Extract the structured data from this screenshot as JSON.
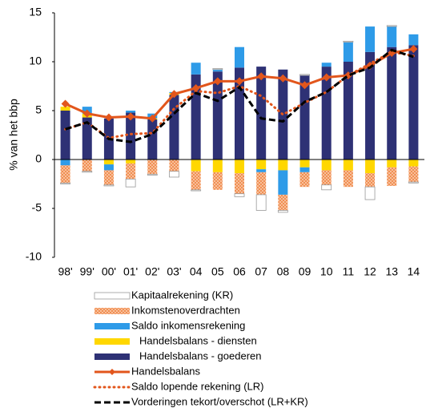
{
  "chart_data": {
    "type": "bar",
    "y_label": "% van het bbp",
    "categories": [
      "98'",
      "99'",
      "00'",
      "01'",
      "02'",
      "03'",
      "04",
      "05",
      "06",
      "07",
      "08",
      "09",
      "10",
      "11",
      "12",
      "13",
      "14"
    ],
    "ylim": [
      -10,
      15
    ],
    "yticks": [
      15,
      10,
      5,
      0,
      -5,
      -10
    ],
    "grid": false,
    "legend": "bottom",
    "series": [
      {
        "name": "Kapitaalrekening (KR)",
        "type": "bar",
        "color": "#ffffff",
        "values": [
          -0.1,
          -0.1,
          -0.1,
          -0.8,
          -0.1,
          -0.6,
          -0.1,
          0.1,
          -0.3,
          -1.6,
          -0.2,
          0.1,
          -0.5,
          0.1,
          -1.3,
          0.1,
          -0.1
        ]
      },
      {
        "name": "Inkomstenoverdrachten",
        "type": "bar",
        "color": "#f08a4b",
        "pattern": "crosshatch",
        "values": [
          -1.8,
          -1.2,
          -1.5,
          -1.6,
          -1.5,
          -1.2,
          -1.9,
          -1.8,
          -2.1,
          -2.3,
          -1.6,
          -1.5,
          -1.5,
          -1.7,
          -1.4,
          -1.9,
          -1.6
        ]
      },
      {
        "name": "Saldo inkomensrekening",
        "type": "bar",
        "color": "#2e9be8",
        "values": [
          -0.6,
          0.7,
          -0.6,
          0.2,
          0.5,
          0.1,
          1.2,
          0.2,
          2.1,
          -0.3,
          -2.5,
          -0.5,
          0.4,
          2.0,
          2.6,
          2.1,
          1.1
        ]
      },
      {
        "name": "Handelsbalans - diensten",
        "type": "bar",
        "color": "#ffd700",
        "values": [
          0.4,
          0.4,
          -0.5,
          -0.4,
          0.1,
          0.2,
          -1.2,
          -1.3,
          -1.4,
          -1.0,
          -1.1,
          -0.8,
          -1.1,
          -1.1,
          -1.4,
          -0.8,
          -0.7
        ]
      },
      {
        "name": "Handelsbalans - goederen",
        "type": "bar",
        "color": "#2e3175",
        "values": [
          5.0,
          4.3,
          4.2,
          4.8,
          4.1,
          6.6,
          8.7,
          9.0,
          9.4,
          9.5,
          9.2,
          8.6,
          9.5,
          10.0,
          11.0,
          11.5,
          11.7
        ]
      },
      {
        "name": "Handelsbalans",
        "type": "line",
        "style": "solid",
        "marker": "diamond",
        "color": "#e2561c",
        "values": [
          5.7,
          4.7,
          4.3,
          4.4,
          4.2,
          6.7,
          7.3,
          8.0,
          8.0,
          8.5,
          8.3,
          7.6,
          8.4,
          8.6,
          9.6,
          10.9,
          11.3
        ]
      },
      {
        "name": "Saldo lopende rekening (LR)",
        "type": "line",
        "style": "dotted",
        "color": "#e2561c",
        "values": [
          3.1,
          3.8,
          2.2,
          2.6,
          2.7,
          5.2,
          7.0,
          6.8,
          7.5,
          6.5,
          4.6,
          5.8,
          6.9,
          8.6,
          9.8,
          11.0,
          10.6
        ]
      },
      {
        "name": "Vorderingen tekort/overschot (LR+KR)",
        "type": "line",
        "style": "dashed",
        "color": "#000000",
        "values": [
          3.1,
          3.8,
          2.1,
          1.8,
          2.6,
          4.7,
          6.8,
          6.0,
          7.4,
          4.2,
          3.9,
          5.9,
          6.9,
          8.6,
          9.4,
          11.2,
          10.5
        ]
      }
    ]
  }
}
